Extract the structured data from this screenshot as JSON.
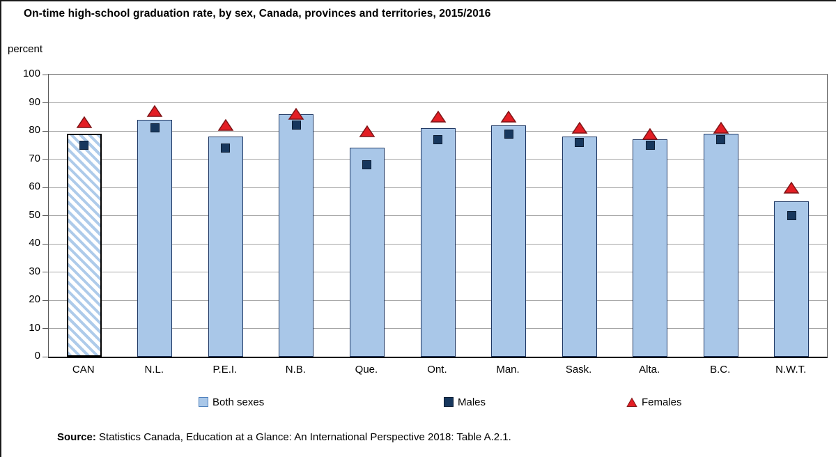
{
  "title": "On-time high-school graduation rate, by sex, Canada, provinces and territories, 2015/2016",
  "unit_label": "percent",
  "source": {
    "prefix": "Source:",
    "text": " Statistics Canada, Education at a Glance: An International Perspective 2018: Table A.2.1."
  },
  "legend": {
    "both_sexes": "Both sexes",
    "males": "Males",
    "females": "Females"
  },
  "colors": {
    "bar_fill": "#a9c7e8",
    "bar_border": "#1f3864",
    "can_bar_border": "#000000",
    "male_square": "#17375d",
    "female_triangle_fill": "#e31e24",
    "female_triangle_stroke": "#7f1416",
    "gridline": "#a6a6a6",
    "plot_border": "#595959",
    "axis_line": "#000000"
  },
  "chart_data": {
    "type": "bar",
    "title": "On-time high-school graduation rate, by sex, Canada, provinces and territories, 2015/2016",
    "ylabel": "percent",
    "xlabel": "",
    "ylim": [
      0,
      100
    ],
    "yticks": [
      0,
      10,
      20,
      30,
      40,
      50,
      60,
      70,
      80,
      90,
      100
    ],
    "grid": true,
    "legend_position": "bottom",
    "highlight_category": "CAN",
    "highlight_style": "diagonal-hatch",
    "categories": [
      "CAN",
      "N.L.",
      "P.E.I.",
      "N.B.",
      "Que.",
      "Ont.",
      "Man.",
      "Sask.",
      "Alta.",
      "B.C.",
      "N.W.T."
    ],
    "series": [
      {
        "name": "Both sexes",
        "type": "bar",
        "marker": "light-blue-bar",
        "values": [
          79,
          84,
          78,
          86,
          74,
          81,
          82,
          78,
          77,
          79,
          55
        ]
      },
      {
        "name": "Males",
        "type": "scatter",
        "marker": "navy-square",
        "values": [
          75,
          81,
          74,
          82,
          68,
          77,
          79,
          76,
          75,
          77,
          50
        ]
      },
      {
        "name": "Females",
        "type": "scatter",
        "marker": "red-triangle",
        "values": [
          83,
          87,
          82,
          86,
          80,
          85,
          85,
          81,
          79,
          81,
          60
        ]
      }
    ]
  }
}
